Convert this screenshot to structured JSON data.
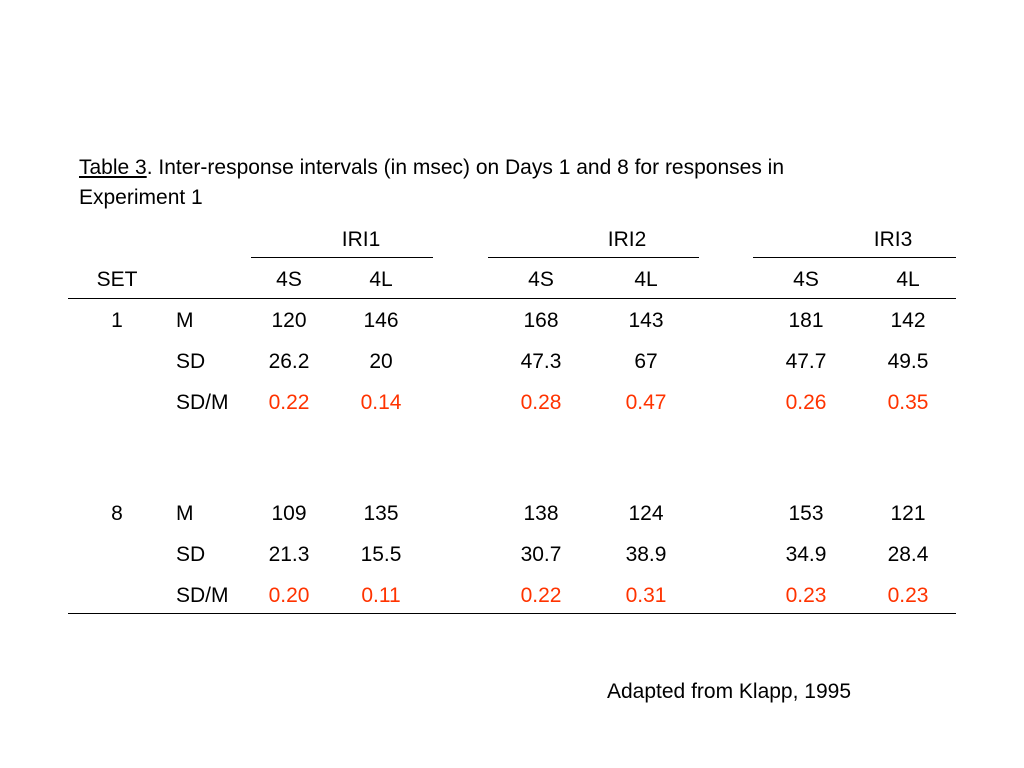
{
  "caption": {
    "label": "Table 3",
    "text": ". Inter-response intervals (in msec) on Days 1 and 8 for responses in Experiment 1"
  },
  "table": {
    "groups": [
      "IRI1",
      "IRI2",
      "IRI3"
    ],
    "set_header": "SET",
    "sub_headers": [
      "4S",
      "4L",
      "4S",
      "4L",
      "4S",
      "4L"
    ],
    "rows": [
      {
        "set": "1",
        "stat": "M",
        "values": [
          "120",
          "146",
          "168",
          "143",
          "181",
          "142"
        ],
        "highlight": false
      },
      {
        "set": "",
        "stat": "SD",
        "values": [
          "26.2",
          "20",
          "47.3",
          "67",
          "47.7",
          "49.5"
        ],
        "highlight": false
      },
      {
        "set": "",
        "stat": "SD/M",
        "values": [
          "0.22",
          "0.14",
          "0.28",
          "0.47",
          "0.26",
          "0.35"
        ],
        "highlight": true
      },
      {
        "set": "8",
        "stat": "M",
        "values": [
          "109",
          "135",
          "138",
          "124",
          "153",
          "121"
        ],
        "highlight": false
      },
      {
        "set": "",
        "stat": "SD",
        "values": [
          "21.3",
          "15.5",
          "30.7",
          "38.9",
          "34.9",
          "28.4"
        ],
        "highlight": false
      },
      {
        "set": "",
        "stat": "SD/M",
        "values": [
          "0.20",
          "0.11",
          "0.22",
          "0.31",
          "0.23",
          "0.23"
        ],
        "highlight": true
      }
    ]
  },
  "source": "Adapted from Klapp, 1995",
  "colors": {
    "highlight": "#ff3300",
    "text": "#000000"
  }
}
